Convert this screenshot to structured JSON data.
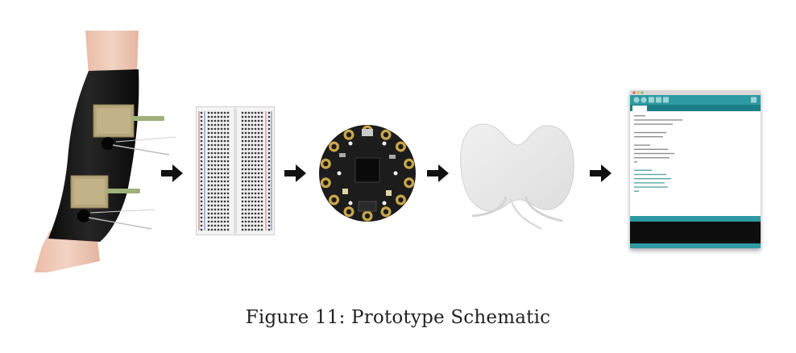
{
  "caption": "Figure 11: Prototype Schematic",
  "components": [
    {
      "id": "sleeve",
      "icon": "leg-sleeve-with-sensors-icon"
    },
    {
      "id": "breadboard",
      "icon": "breadboard-icon"
    },
    {
      "id": "microcontroller",
      "icon": "circuit-playground-board-icon"
    },
    {
      "id": "electrode-pad",
      "icon": "tens-electrode-pad-icon"
    },
    {
      "id": "ide",
      "icon": "arduino-ide-window-icon"
    }
  ],
  "colors": {
    "arrow": "#111111",
    "sleeve": "#141414",
    "skin": "#ecc5b2",
    "ide_teal": "#2f9aa3",
    "ide_console": "#111111",
    "board": "#1c1c1c"
  }
}
